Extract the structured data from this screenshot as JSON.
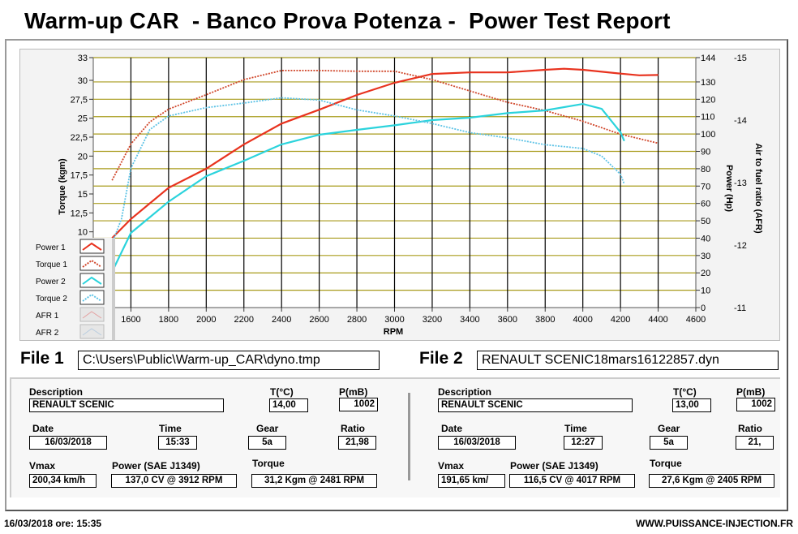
{
  "title": "Warm-up CAR  - Banco Prova Potenza -  Power Test Report",
  "chart_data": {
    "type": "line",
    "xlabel": "RPM",
    "ylabel_left": "Torque (kgm)",
    "ylabel_right": "Power (Hp)",
    "ylabel_right2": "Air to fuel ratio (AFR)",
    "xlim": [
      1400,
      4600
    ],
    "ylim_left": [
      0,
      33
    ],
    "ylim_right": [
      0,
      144
    ],
    "ylim_right2": [
      -11,
      -15
    ],
    "x_ticks": [
      1600,
      1800,
      2000,
      2200,
      2400,
      2600,
      2800,
      3000,
      3200,
      3400,
      3600,
      3800,
      4000,
      4200,
      4400,
      4600
    ],
    "left_ticks": [
      {
        "v": 10,
        "t": "10"
      },
      {
        "v": 12.5,
        "t": "12,5"
      },
      {
        "v": 15,
        "t": "15"
      },
      {
        "v": 17.5,
        "t": "17,5"
      },
      {
        "v": 20,
        "t": "20"
      },
      {
        "v": 22.5,
        "t": "22,5"
      },
      {
        "v": 25,
        "t": "25"
      },
      {
        "v": 27.5,
        "t": "27,5"
      },
      {
        "v": 30,
        "t": "30"
      },
      {
        "v": 33,
        "t": "33"
      }
    ],
    "right_ticks": [
      0,
      10,
      20,
      30,
      40,
      50,
      60,
      70,
      80,
      90,
      100,
      110,
      120,
      130,
      144
    ],
    "afr_ticks": [
      -15,
      -14,
      -13,
      -12,
      -11
    ],
    "grid": true,
    "legend_position": "bottom-left",
    "series": [
      {
        "name": "Power 1",
        "axis": "power",
        "color": "#e8321e",
        "dashed": false,
        "x": [
          1500,
          1600,
          1800,
          2000,
          2200,
          2400,
          2600,
          2800,
          3000,
          3200,
          3400,
          3600,
          3800,
          3900,
          4000,
          4200,
          4300,
          4400
        ],
        "y": [
          40,
          51,
          69,
          80,
          94,
          106,
          114,
          122.5,
          129.5,
          134.6,
          135.5,
          135.5,
          137,
          137.6,
          137,
          134.8,
          133.8,
          134
        ]
      },
      {
        "name": "Torque 1",
        "axis": "torque",
        "color": "#d0462a",
        "dashed": true,
        "x": [
          1500,
          1600,
          1700,
          1800,
          2000,
          2200,
          2400,
          2600,
          2800,
          3000,
          3200,
          3400,
          3600,
          3800,
          4000,
          4200,
          4400
        ],
        "y": [
          16.8,
          21.6,
          24.5,
          26.2,
          28.1,
          30.1,
          31.3,
          31.3,
          31.2,
          31.2,
          30.1,
          28.6,
          27.1,
          26,
          24.6,
          22.9,
          21.7
        ]
      },
      {
        "name": "Power 2",
        "axis": "power",
        "color": "#2bd3dc",
        "dashed": false,
        "x": [
          1500,
          1600,
          1800,
          2000,
          2200,
          2400,
          2600,
          2800,
          3000,
          3200,
          3400,
          3600,
          3800,
          4000,
          4100,
          4200,
          4220
        ],
        "y": [
          20.6,
          43,
          61,
          75.7,
          84.6,
          94,
          99.6,
          102.4,
          105,
          108,
          109.4,
          112,
          113.6,
          117.3,
          114.5,
          101,
          96
        ]
      },
      {
        "name": "Torque 2",
        "axis": "torque",
        "color": "#5ec3e6",
        "dashed": true,
        "x": [
          1500,
          1550,
          1600,
          1700,
          1800,
          2000,
          2200,
          2400,
          2600,
          2800,
          3000,
          3200,
          3400,
          3600,
          3800,
          4000,
          4100,
          4200,
          4220
        ],
        "y": [
          8.5,
          11.7,
          18.4,
          23.5,
          25.3,
          26.4,
          27,
          27.7,
          27.4,
          26.1,
          25.3,
          24.3,
          23.1,
          22.4,
          21.5,
          21,
          20,
          17.6,
          16.3
        ]
      }
    ],
    "legend": [
      "Power 1",
      "Torque 1",
      "Power 2",
      "Torque 2",
      "AFR 1",
      "AFR 2"
    ]
  },
  "file1": {
    "label": "File 1",
    "path": "C:\\Users\\Public\\Warm-up_CAR\\dyno.tmp",
    "description_label": "Description",
    "description": "RENAULT SCENIC",
    "temp_label": "T(°C)",
    "temp": "14,00",
    "pressure_label": "P(mB)",
    "pressure": "1002",
    "date_label": "Date",
    "date": "16/03/2018",
    "time_label": "Time",
    "time": "15:33",
    "gear_label": "Gear",
    "gear": "5a",
    "ratio_label": "Ratio",
    "ratio": "21,98",
    "vmax_label": "Vmax",
    "vmax": "200,34 km/h",
    "power_label": "Power (SAE J1349)",
    "power": "137,0 CV  @ 3912  RPM",
    "torque_label": "Torque",
    "torque": "31,2 Kgm  @ 2481  RPM"
  },
  "file2": {
    "label": "File 2",
    "path": "RENAULT SCENIC18mars16122857.dyn",
    "description_label": "Description",
    "description": "RENAULT SCENIC",
    "temp_label": "T(°C)",
    "temp": "13,00",
    "pressure_label": "P(mB)",
    "pressure": "1002",
    "date_label": "Date",
    "date": "16/03/2018",
    "time_label": "Time",
    "time": "12:27",
    "gear_label": "Gear",
    "gear": "5a",
    "ratio_label": "Ratio",
    "ratio": "21,",
    "vmax_label": "Vmax",
    "vmax": "191,65 km/",
    "power_label": "Power (SAE J1349)",
    "power": "116,5 CV  @ 4017  RPM",
    "torque_label": "Torque",
    "torque": "27,6 Kgm  @ 2405  RPM"
  },
  "footer": {
    "datetime": "16/03/2018  ore: 15:35",
    "url": "WWW.PUISSANCE-INJECTION.FR"
  }
}
